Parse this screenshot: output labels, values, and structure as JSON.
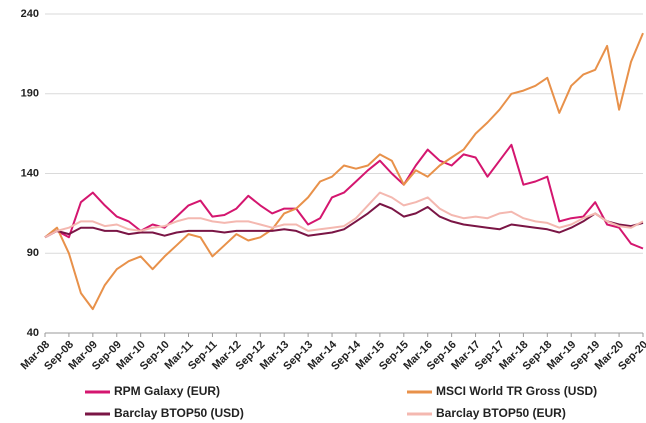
{
  "chart_data": {
    "type": "line",
    "categories": [
      "Mar-08",
      null,
      "Sep-08",
      null,
      "Mar-09",
      null,
      "Sep-09",
      null,
      "Mar-10",
      null,
      "Sep-10",
      null,
      "Mar-11",
      null,
      "Sep-11",
      null,
      "Mar-12",
      null,
      "Sep-12",
      null,
      "Mar-13",
      null,
      "Sep-13",
      null,
      "Mar-14",
      null,
      "Sep-14",
      null,
      "Mar-15",
      null,
      "Sep-15",
      null,
      "Mar-16",
      null,
      "Sep-16",
      null,
      "Mar-17",
      null,
      "Sep-17",
      null,
      "Mar-18",
      null,
      "Sep-18",
      null,
      "Mar-19",
      null,
      "Sep-19",
      null,
      "Mar-20",
      null,
      "Sep-20"
    ],
    "series": [
      {
        "name": "RPM Galaxy (EUR)",
        "color": "#d4166f",
        "values": [
          100,
          104,
          100,
          122,
          128,
          120,
          113,
          110,
          104,
          108,
          106,
          113,
          120,
          123,
          113,
          114,
          118,
          126,
          120,
          115,
          118,
          118,
          108,
          112,
          125,
          128,
          135,
          142,
          148,
          140,
          133,
          145,
          155,
          148,
          145,
          152,
          150,
          138,
          148,
          158,
          133,
          135,
          138,
          110,
          112,
          113,
          122,
          108,
          106,
          96,
          93
        ]
      },
      {
        "name": "MSCI World TR Gross (USD)",
        "color": "#e8914a",
        "values": [
          100,
          106,
          90,
          65,
          55,
          70,
          80,
          85,
          88,
          80,
          88,
          95,
          102,
          100,
          88,
          95,
          102,
          98,
          100,
          105,
          115,
          118,
          125,
          135,
          138,
          145,
          143,
          145,
          152,
          148,
          133,
          142,
          138,
          145,
          150,
          155,
          165,
          172,
          180,
          190,
          192,
          195,
          200,
          178,
          195,
          202,
          205,
          220,
          180,
          210,
          228
        ]
      },
      {
        "name": "Barclay BTOP50 (USD)",
        "color": "#7a1545",
        "values": [
          100,
          104,
          102,
          106,
          106,
          104,
          104,
          102,
          103,
          103,
          101,
          103,
          104,
          104,
          104,
          103,
          104,
          104,
          104,
          104,
          105,
          104,
          101,
          102,
          103,
          105,
          110,
          115,
          121,
          118,
          113,
          115,
          119,
          113,
          110,
          108,
          107,
          106,
          105,
          108,
          107,
          106,
          105,
          103,
          106,
          110,
          115,
          110,
          108,
          107,
          109
        ]
      },
      {
        "name": "Barclay BTOP50 (EUR)",
        "color": "#f4b8b0",
        "values": [
          100,
          104,
          106,
          110,
          110,
          107,
          108,
          105,
          104,
          106,
          107,
          110,
          112,
          112,
          110,
          109,
          110,
          110,
          108,
          106,
          108,
          108,
          104,
          105,
          106,
          107,
          112,
          120,
          128,
          125,
          120,
          122,
          125,
          118,
          114,
          112,
          113,
          112,
          115,
          116,
          112,
          110,
          109,
          106,
          108,
          112,
          115,
          110,
          107,
          106,
          110
        ]
      }
    ],
    "ylim": [
      40,
      240
    ],
    "yticks": [
      40,
      90,
      140,
      190,
      240
    ],
    "grid": true
  }
}
